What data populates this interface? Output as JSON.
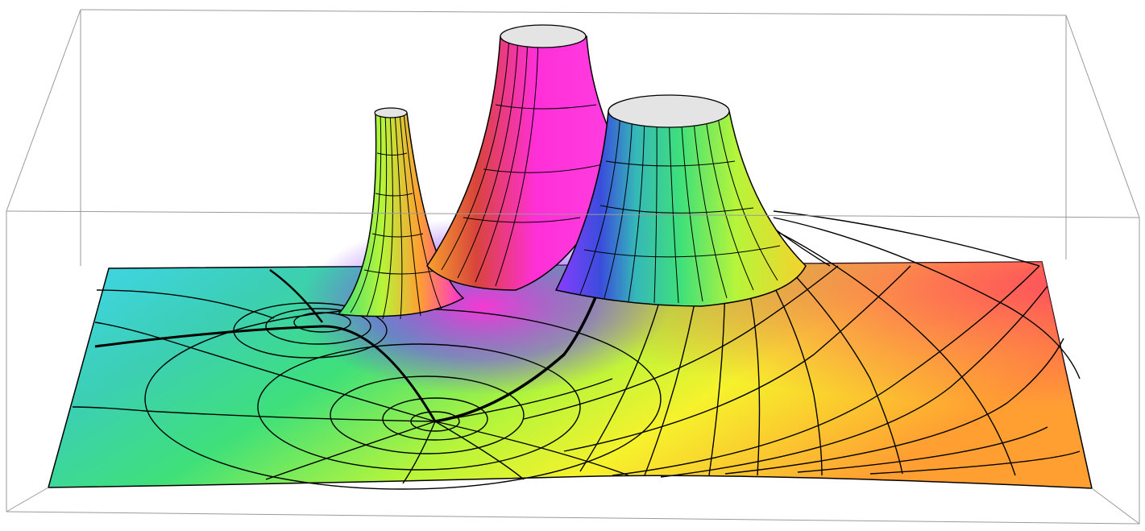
{
  "scene": {
    "surfaceColors": {
      "cyan": "#3fd6f0",
      "teal": "#3ccfb4",
      "green": "#3fe07a",
      "lime": "#b6f53a",
      "yellow": "#f6f22c",
      "orange": "#ff9f32",
      "red": "#ff4d5e",
      "magenta": "#ff2fd8",
      "purple": "#8a3cff",
      "blue": "#3a4ddc"
    },
    "gridColor": "#000000",
    "boxColor": "#9a9a9a",
    "capColor": "#e4e4e4"
  }
}
